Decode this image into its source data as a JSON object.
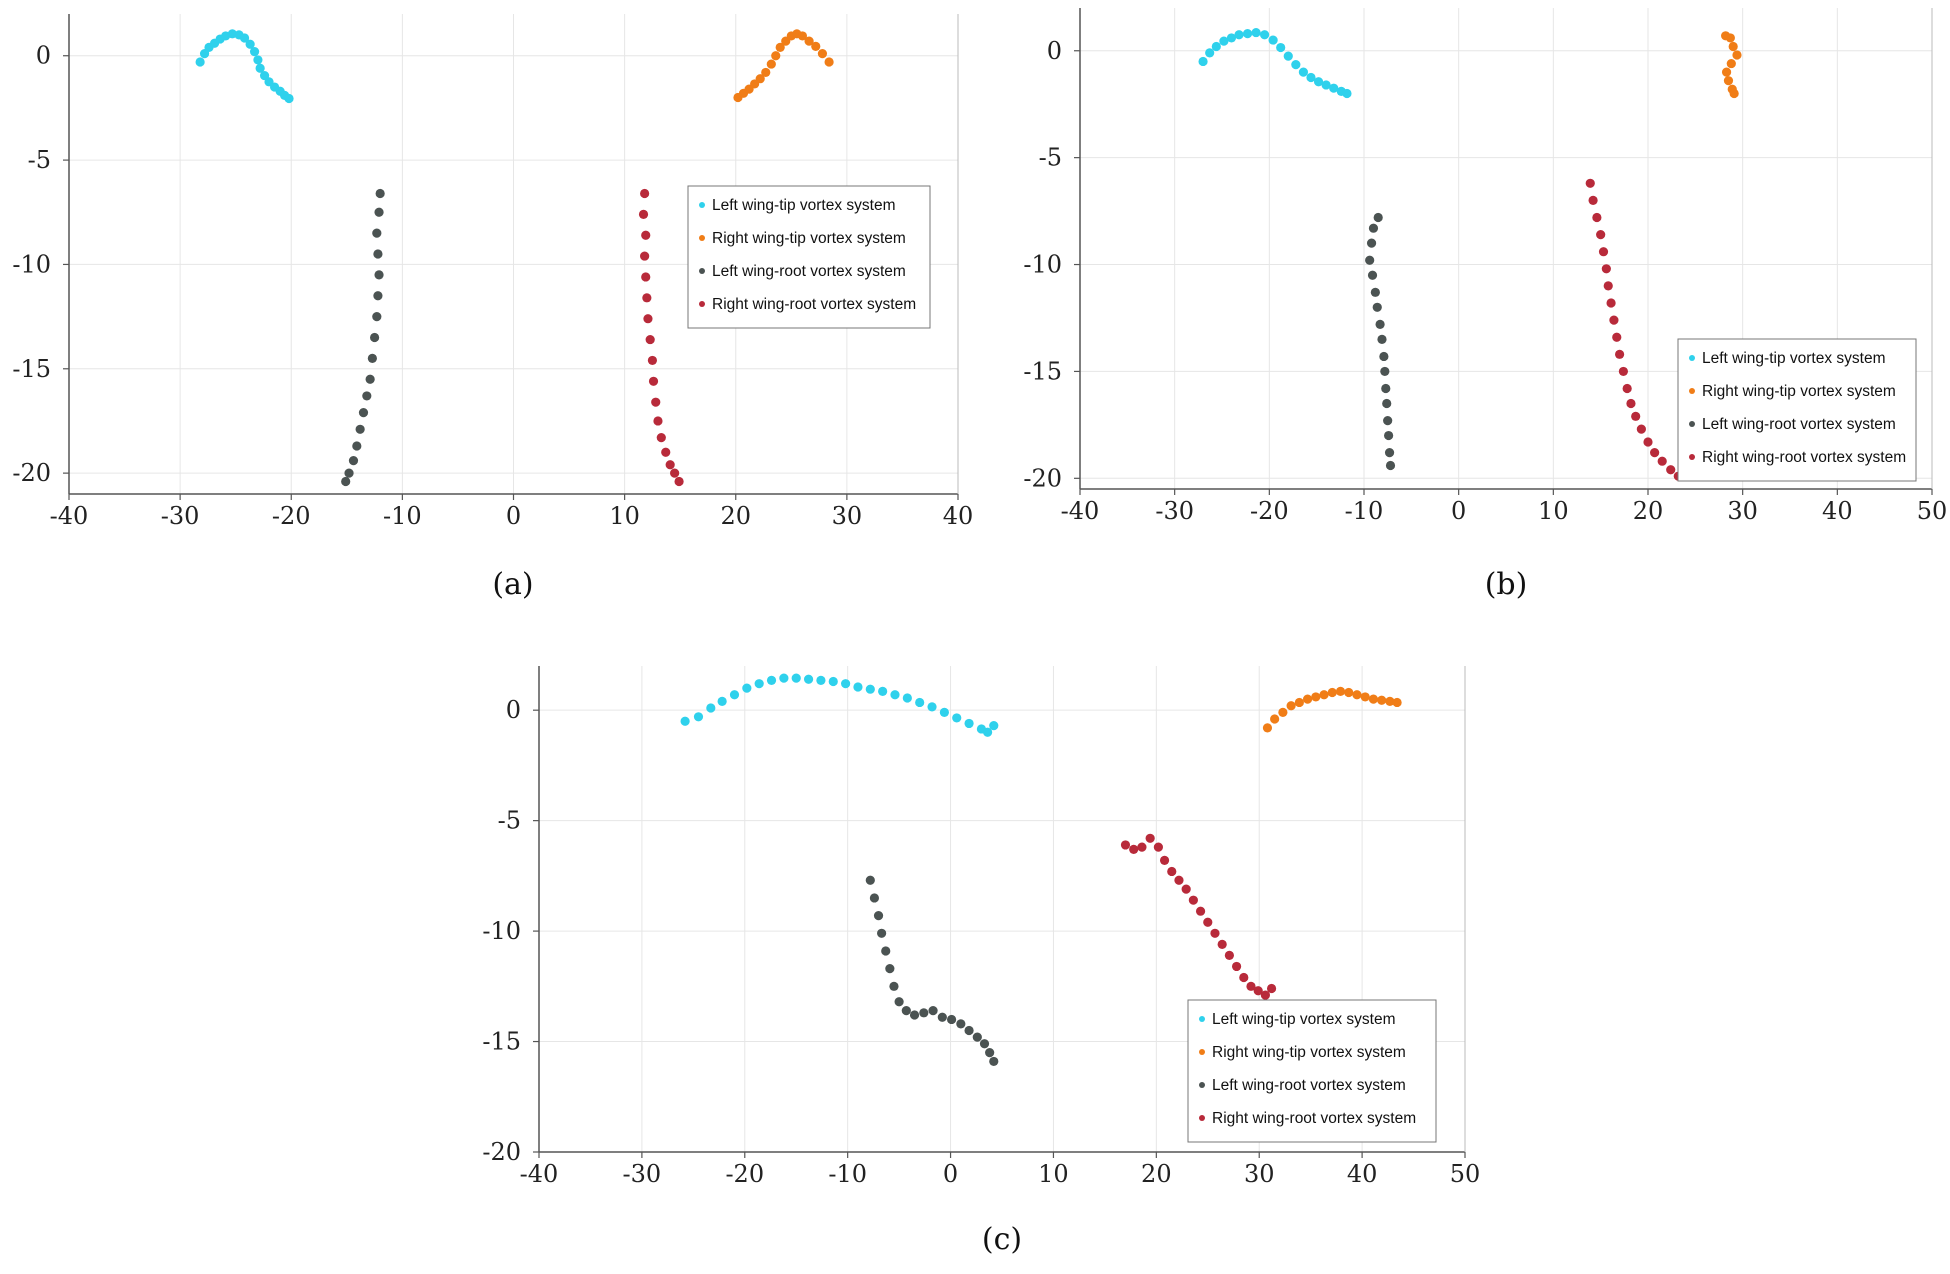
{
  "chart_data": [
    {
      "type": "scatter",
      "caption": "(a)",
      "xlim": [
        -40,
        40
      ],
      "ylim": [
        -21,
        2
      ],
      "xticks": [
        -40,
        -30,
        -20,
        -10,
        0,
        10,
        20,
        30,
        40
      ],
      "yticks": [
        0,
        -5,
        -10,
        -15,
        -20
      ],
      "grid": true,
      "legend": {
        "placement": "right-middle"
      },
      "series": [
        {
          "name": "Left wing-tip vortex system",
          "color": "#2fd1ec",
          "points": [
            [
              -28.2,
              -0.3
            ],
            [
              -27.8,
              0.1
            ],
            [
              -27.4,
              0.4
            ],
            [
              -26.9,
              0.6
            ],
            [
              -26.4,
              0.8
            ],
            [
              -25.9,
              0.95
            ],
            [
              -25.3,
              1.05
            ],
            [
              -24.7,
              1.0
            ],
            [
              -24.2,
              0.85
            ],
            [
              -23.7,
              0.55
            ],
            [
              -23.3,
              0.2
            ],
            [
              -23.0,
              -0.2
            ],
            [
              -22.8,
              -0.6
            ],
            [
              -22.4,
              -0.95
            ],
            [
              -22.0,
              -1.25
            ],
            [
              -21.5,
              -1.5
            ],
            [
              -21.0,
              -1.7
            ],
            [
              -20.6,
              -1.9
            ],
            [
              -20.2,
              -2.05
            ]
          ]
        },
        {
          "name": "Right wing-tip vortex system",
          "color": "#f07d17",
          "points": [
            [
              20.2,
              -2.0
            ],
            [
              20.7,
              -1.8
            ],
            [
              21.2,
              -1.6
            ],
            [
              21.7,
              -1.35
            ],
            [
              22.2,
              -1.1
            ],
            [
              22.7,
              -0.8
            ],
            [
              23.2,
              -0.4
            ],
            [
              23.6,
              0.0
            ],
            [
              24.0,
              0.4
            ],
            [
              24.5,
              0.7
            ],
            [
              25.0,
              0.95
            ],
            [
              25.5,
              1.05
            ],
            [
              26.0,
              0.95
            ],
            [
              26.6,
              0.7
            ],
            [
              27.2,
              0.45
            ],
            [
              27.8,
              0.1
            ],
            [
              28.4,
              -0.3
            ]
          ]
        },
        {
          "name": "Left wing-root vortex system",
          "color": "#4b5352",
          "points": [
            [
              -12.0,
              -6.6
            ],
            [
              -12.1,
              -7.5
            ],
            [
              -12.3,
              -8.5
            ],
            [
              -12.2,
              -9.5
            ],
            [
              -12.1,
              -10.5
            ],
            [
              -12.2,
              -11.5
            ],
            [
              -12.3,
              -12.5
            ],
            [
              -12.5,
              -13.5
            ],
            [
              -12.7,
              -14.5
            ],
            [
              -12.9,
              -15.5
            ],
            [
              -13.2,
              -16.3
            ],
            [
              -13.5,
              -17.1
            ],
            [
              -13.8,
              -17.9
            ],
            [
              -14.1,
              -18.7
            ],
            [
              -14.4,
              -19.4
            ],
            [
              -14.8,
              -20.0
            ],
            [
              -15.1,
              -20.4
            ]
          ]
        },
        {
          "name": "Right wing-root vortex system",
          "color": "#b82a3a",
          "points": [
            [
              11.8,
              -6.6
            ],
            [
              11.7,
              -7.6
            ],
            [
              11.9,
              -8.6
            ],
            [
              11.8,
              -9.6
            ],
            [
              11.9,
              -10.6
            ],
            [
              12.0,
              -11.6
            ],
            [
              12.1,
              -12.6
            ],
            [
              12.3,
              -13.6
            ],
            [
              12.5,
              -14.6
            ],
            [
              12.6,
              -15.6
            ],
            [
              12.8,
              -16.6
            ],
            [
              13.0,
              -17.5
            ],
            [
              13.3,
              -18.3
            ],
            [
              13.7,
              -19.0
            ],
            [
              14.1,
              -19.6
            ],
            [
              14.5,
              -20.0
            ],
            [
              14.9,
              -20.4
            ]
          ]
        }
      ]
    },
    {
      "type": "scatter",
      "caption": "(b)",
      "xlim": [
        -40,
        50
      ],
      "ylim": [
        -20.5,
        2
      ],
      "xticks": [
        -40,
        -30,
        -20,
        -10,
        0,
        10,
        20,
        30,
        40,
        50
      ],
      "yticks": [
        0,
        -5,
        -10,
        -15,
        -20
      ],
      "grid": true,
      "legend": {
        "placement": "bottom-right"
      },
      "series": [
        {
          "name": "Left wing-tip vortex system",
          "color": "#2fd1ec",
          "points": [
            [
              -27.0,
              -0.5
            ],
            [
              -26.3,
              -0.1
            ],
            [
              -25.6,
              0.2
            ],
            [
              -24.8,
              0.45
            ],
            [
              -24.0,
              0.6
            ],
            [
              -23.2,
              0.75
            ],
            [
              -22.3,
              0.8
            ],
            [
              -21.4,
              0.85
            ],
            [
              -20.5,
              0.75
            ],
            [
              -19.6,
              0.5
            ],
            [
              -18.8,
              0.15
            ],
            [
              -18.0,
              -0.25
            ],
            [
              -17.2,
              -0.65
            ],
            [
              -16.4,
              -1.0
            ],
            [
              -15.6,
              -1.25
            ],
            [
              -14.8,
              -1.45
            ],
            [
              -14.0,
              -1.6
            ],
            [
              -13.2,
              -1.75
            ],
            [
              -12.4,
              -1.9
            ],
            [
              -11.8,
              -2.0
            ]
          ]
        },
        {
          "name": "Right wing-tip vortex system",
          "color": "#f07d17",
          "points": [
            [
              28.2,
              0.7
            ],
            [
              28.7,
              0.6
            ],
            [
              29.0,
              0.2
            ],
            [
              29.4,
              -0.2
            ],
            [
              28.8,
              -0.6
            ],
            [
              28.3,
              -1.0
            ],
            [
              28.5,
              -1.4
            ],
            [
              28.9,
              -1.8
            ],
            [
              29.1,
              -2.0
            ]
          ]
        },
        {
          "name": "Left wing-root vortex system",
          "color": "#4b5352",
          "points": [
            [
              -8.5,
              -7.8
            ],
            [
              -9.0,
              -8.3
            ],
            [
              -9.2,
              -9.0
            ],
            [
              -9.4,
              -9.8
            ],
            [
              -9.1,
              -10.5
            ],
            [
              -8.8,
              -11.3
            ],
            [
              -8.6,
              -12.0
            ],
            [
              -8.3,
              -12.8
            ],
            [
              -8.1,
              -13.5
            ],
            [
              -7.9,
              -14.3
            ],
            [
              -7.8,
              -15.0
            ],
            [
              -7.7,
              -15.8
            ],
            [
              -7.6,
              -16.5
            ],
            [
              -7.5,
              -17.3
            ],
            [
              -7.4,
              -18.0
            ],
            [
              -7.3,
              -18.8
            ],
            [
              -7.2,
              -19.4
            ]
          ]
        },
        {
          "name": "Right wing-root vortex system",
          "color": "#b82a3a",
          "points": [
            [
              13.9,
              -6.2
            ],
            [
              14.2,
              -7.0
            ],
            [
              14.6,
              -7.8
            ],
            [
              15.0,
              -8.6
            ],
            [
              15.3,
              -9.4
            ],
            [
              15.6,
              -10.2
            ],
            [
              15.8,
              -11.0
            ],
            [
              16.1,
              -11.8
            ],
            [
              16.4,
              -12.6
            ],
            [
              16.7,
              -13.4
            ],
            [
              17.0,
              -14.2
            ],
            [
              17.4,
              -15.0
            ],
            [
              17.8,
              -15.8
            ],
            [
              18.2,
              -16.5
            ],
            [
              18.7,
              -17.1
            ],
            [
              19.3,
              -17.7
            ],
            [
              20.0,
              -18.3
            ],
            [
              20.7,
              -18.8
            ],
            [
              21.5,
              -19.2
            ],
            [
              22.4,
              -19.6
            ],
            [
              23.2,
              -19.9
            ]
          ]
        }
      ]
    },
    {
      "type": "scatter",
      "caption": "(c)",
      "xlim": [
        -40,
        50
      ],
      "ylim": [
        -20,
        2
      ],
      "xticks": [
        -40,
        -30,
        -20,
        -10,
        0,
        10,
        20,
        30,
        40,
        50
      ],
      "yticks": [
        0,
        -5,
        -10,
        -15,
        -20
      ],
      "grid": true,
      "legend": {
        "placement": "bottom-right"
      },
      "series": [
        {
          "name": "Left wing-tip vortex system",
          "color": "#2fd1ec",
          "points": [
            [
              -25.8,
              -0.5
            ],
            [
              -24.5,
              -0.3
            ],
            [
              -23.3,
              0.1
            ],
            [
              -22.2,
              0.4
            ],
            [
              -21.0,
              0.7
            ],
            [
              -19.8,
              1.0
            ],
            [
              -18.6,
              1.2
            ],
            [
              -17.4,
              1.35
            ],
            [
              -16.2,
              1.45
            ],
            [
              -15.0,
              1.45
            ],
            [
              -13.8,
              1.4
            ],
            [
              -12.6,
              1.35
            ],
            [
              -11.4,
              1.3
            ],
            [
              -10.2,
              1.2
            ],
            [
              -9.0,
              1.05
            ],
            [
              -7.8,
              0.95
            ],
            [
              -6.6,
              0.85
            ],
            [
              -5.4,
              0.7
            ],
            [
              -4.2,
              0.55
            ],
            [
              -3.0,
              0.35
            ],
            [
              -1.8,
              0.15
            ],
            [
              -0.6,
              -0.1
            ],
            [
              0.6,
              -0.35
            ],
            [
              1.8,
              -0.6
            ],
            [
              3.0,
              -0.85
            ],
            [
              3.6,
              -1.0
            ],
            [
              4.2,
              -0.7
            ]
          ]
        },
        {
          "name": "Right wing-tip vortex system",
          "color": "#f07d17",
          "points": [
            [
              30.8,
              -0.8
            ],
            [
              31.5,
              -0.4
            ],
            [
              32.3,
              -0.1
            ],
            [
              33.1,
              0.2
            ],
            [
              33.9,
              0.35
            ],
            [
              34.7,
              0.5
            ],
            [
              35.5,
              0.6
            ],
            [
              36.3,
              0.7
            ],
            [
              37.1,
              0.8
            ],
            [
              37.9,
              0.85
            ],
            [
              38.7,
              0.8
            ],
            [
              39.5,
              0.7
            ],
            [
              40.3,
              0.6
            ],
            [
              41.1,
              0.5
            ],
            [
              41.9,
              0.45
            ],
            [
              42.7,
              0.4
            ],
            [
              43.4,
              0.35
            ]
          ]
        },
        {
          "name": "Left wing-root vortex system",
          "color": "#4b5352",
          "points": [
            [
              -7.8,
              -7.7
            ],
            [
              -7.4,
              -8.5
            ],
            [
              -7.0,
              -9.3
            ],
            [
              -6.7,
              -10.1
            ],
            [
              -6.3,
              -10.9
            ],
            [
              -5.9,
              -11.7
            ],
            [
              -5.5,
              -12.5
            ],
            [
              -5.0,
              -13.2
            ],
            [
              -4.3,
              -13.6
            ],
            [
              -3.5,
              -13.8
            ],
            [
              -2.6,
              -13.7
            ],
            [
              -1.7,
              -13.6
            ],
            [
              -0.8,
              -13.9
            ],
            [
              0.1,
              -14.0
            ],
            [
              1.0,
              -14.2
            ],
            [
              1.8,
              -14.5
            ],
            [
              2.6,
              -14.8
            ],
            [
              3.3,
              -15.1
            ],
            [
              3.8,
              -15.5
            ],
            [
              4.2,
              -15.9
            ]
          ]
        },
        {
          "name": "Right wing-root vortex system",
          "color": "#b82a3a",
          "points": [
            [
              17.0,
              -6.1
            ],
            [
              17.8,
              -6.3
            ],
            [
              18.6,
              -6.2
            ],
            [
              19.4,
              -5.8
            ],
            [
              20.2,
              -6.2
            ],
            [
              20.8,
              -6.8
            ],
            [
              21.5,
              -7.3
            ],
            [
              22.2,
              -7.7
            ],
            [
              22.9,
              -8.1
            ],
            [
              23.6,
              -8.6
            ],
            [
              24.3,
              -9.1
            ],
            [
              25.0,
              -9.6
            ],
            [
              25.7,
              -10.1
            ],
            [
              26.4,
              -10.6
            ],
            [
              27.1,
              -11.1
            ],
            [
              27.8,
              -11.6
            ],
            [
              28.5,
              -12.1
            ],
            [
              29.2,
              -12.5
            ],
            [
              29.9,
              -12.7
            ],
            [
              30.6,
              -12.9
            ],
            [
              31.2,
              -12.6
            ]
          ]
        }
      ]
    }
  ]
}
